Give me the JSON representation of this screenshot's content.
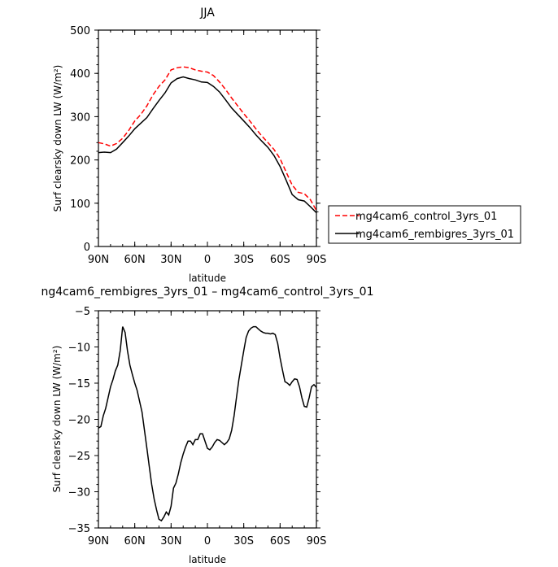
{
  "page": {
    "top_title": "JJA",
    "bottom_title": "ng4cam6_rembigres_3yrs_01 – mg4cam6_control_3yrs_01"
  },
  "chart_data": [
    {
      "type": "line",
      "title": "JJA",
      "xlabel": "latitude",
      "ylabel": "Surf clearsky down LW (W/m²)",
      "xlim": [
        90,
        -90
      ],
      "ylim": [
        0,
        500
      ],
      "xticks": [
        90,
        60,
        30,
        0,
        -30,
        -60,
        -90
      ],
      "xtick_labels": [
        "90N",
        "60N",
        "30N",
        "0",
        "30S",
        "60S",
        "90S"
      ],
      "yticks": [
        0,
        100,
        200,
        300,
        400,
        500
      ],
      "ytick_labels": [
        "0",
        "100",
        "200",
        "300",
        "400",
        "500"
      ],
      "legend_position": "right",
      "x": [
        90,
        85,
        80,
        75,
        70,
        65,
        60,
        55,
        50,
        45,
        40,
        35,
        30,
        25,
        20,
        15,
        10,
        5,
        0,
        -5,
        -10,
        -15,
        -20,
        -25,
        -30,
        -35,
        -40,
        -45,
        -50,
        -55,
        -60,
        -65,
        -70,
        -75,
        -80,
        -85,
        -90
      ],
      "series": [
        {
          "name": "mg4cam6_control_3yrs_01",
          "color": "#ff0000",
          "dash": "dashed",
          "values": [
            240,
            237,
            232,
            238,
            250,
            268,
            290,
            305,
            325,
            350,
            370,
            385,
            408,
            413,
            415,
            413,
            408,
            405,
            403,
            395,
            380,
            363,
            343,
            325,
            307,
            290,
            272,
            255,
            240,
            224,
            203,
            172,
            142,
            125,
            122,
            108,
            83
          ]
        },
        {
          "name": "mg4cam6_rembigres_3yrs_01",
          "color": "#000000",
          "dash": "solid",
          "values": [
            217,
            218,
            217,
            225,
            240,
            255,
            272,
            285,
            298,
            318,
            337,
            355,
            378,
            388,
            392,
            388,
            385,
            380,
            379,
            370,
            357,
            339,
            320,
            305,
            290,
            275,
            258,
            243,
            229,
            210,
            185,
            153,
            120,
            108,
            105,
            92,
            78
          ]
        }
      ]
    },
    {
      "type": "line",
      "title": "ng4cam6_rembigres_3yrs_01 – mg4cam6_control_3yrs_01",
      "xlabel": "latitude",
      "ylabel": "Surf clearsky down LW (W/m²)",
      "xlim": [
        90,
        -90
      ],
      "ylim": [
        -35,
        -5
      ],
      "xticks": [
        90,
        60,
        30,
        0,
        -30,
        -60,
        -90
      ],
      "xtick_labels": [
        "90N",
        "60N",
        "30N",
        "0",
        "30S",
        "60S",
        "90S"
      ],
      "yticks": [
        -35,
        -30,
        -25,
        -20,
        -15,
        -10,
        -5
      ],
      "ytick_labels": [
        "−35",
        "−30",
        "−25",
        "−20",
        "−15",
        "−10",
        "−5"
      ],
      "series": [
        {
          "color": "#000000",
          "dash": "solid",
          "x": [
            90,
            88,
            86,
            84,
            82,
            80,
            78,
            76,
            74,
            72,
            70,
            68,
            66,
            64,
            62,
            60,
            58,
            56,
            54,
            52,
            50,
            48,
            46,
            44,
            42,
            40,
            38,
            36,
            34,
            32,
            30,
            28,
            26,
            24,
            22,
            20,
            18,
            16,
            14,
            12,
            10,
            8,
            6,
            4,
            2,
            0,
            -2,
            -4,
            -6,
            -8,
            -10,
            -12,
            -14,
            -16,
            -18,
            -20,
            -22,
            -24,
            -26,
            -28,
            -30,
            -32,
            -34,
            -36,
            -38,
            -40,
            -42,
            -44,
            -46,
            -48,
            -50,
            -52,
            -54,
            -56,
            -58,
            -60,
            -62,
            -64,
            -66,
            -68,
            -70,
            -72,
            -74,
            -76,
            -78,
            -80,
            -82,
            -84,
            -86,
            -88,
            -90
          ],
          "values": [
            -21.2,
            -21.0,
            -19.5,
            -18.5,
            -17.0,
            -15.5,
            -14.5,
            -13.3,
            -12.5,
            -10.5,
            -7.2,
            -8.0,
            -10.5,
            -12.5,
            -13.8,
            -15.0,
            -16.0,
            -17.5,
            -19.0,
            -21.5,
            -24.0,
            -26.5,
            -29.0,
            -31.0,
            -32.5,
            -33.8,
            -34.0,
            -33.5,
            -32.8,
            -33.2,
            -32.0,
            -29.5,
            -28.8,
            -27.5,
            -26.0,
            -24.8,
            -23.8,
            -23.0,
            -23.0,
            -23.5,
            -22.8,
            -22.8,
            -22.0,
            -22.0,
            -23.0,
            -24.0,
            -24.2,
            -23.8,
            -23.2,
            -22.8,
            -22.9,
            -23.2,
            -23.5,
            -23.2,
            -22.7,
            -21.5,
            -19.5,
            -17.0,
            -14.5,
            -12.5,
            -10.5,
            -8.7,
            -7.8,
            -7.4,
            -7.2,
            -7.2,
            -7.5,
            -7.8,
            -8.0,
            -8.1,
            -8.1,
            -8.2,
            -8.1,
            -8.3,
            -9.5,
            -11.5,
            -13.2,
            -14.8,
            -15.0,
            -15.3,
            -14.8,
            -14.4,
            -14.5,
            -15.5,
            -17.0,
            -18.2,
            -18.3,
            -17.0,
            -15.5,
            -15.2,
            -15.6
          ]
        }
      ]
    }
  ]
}
